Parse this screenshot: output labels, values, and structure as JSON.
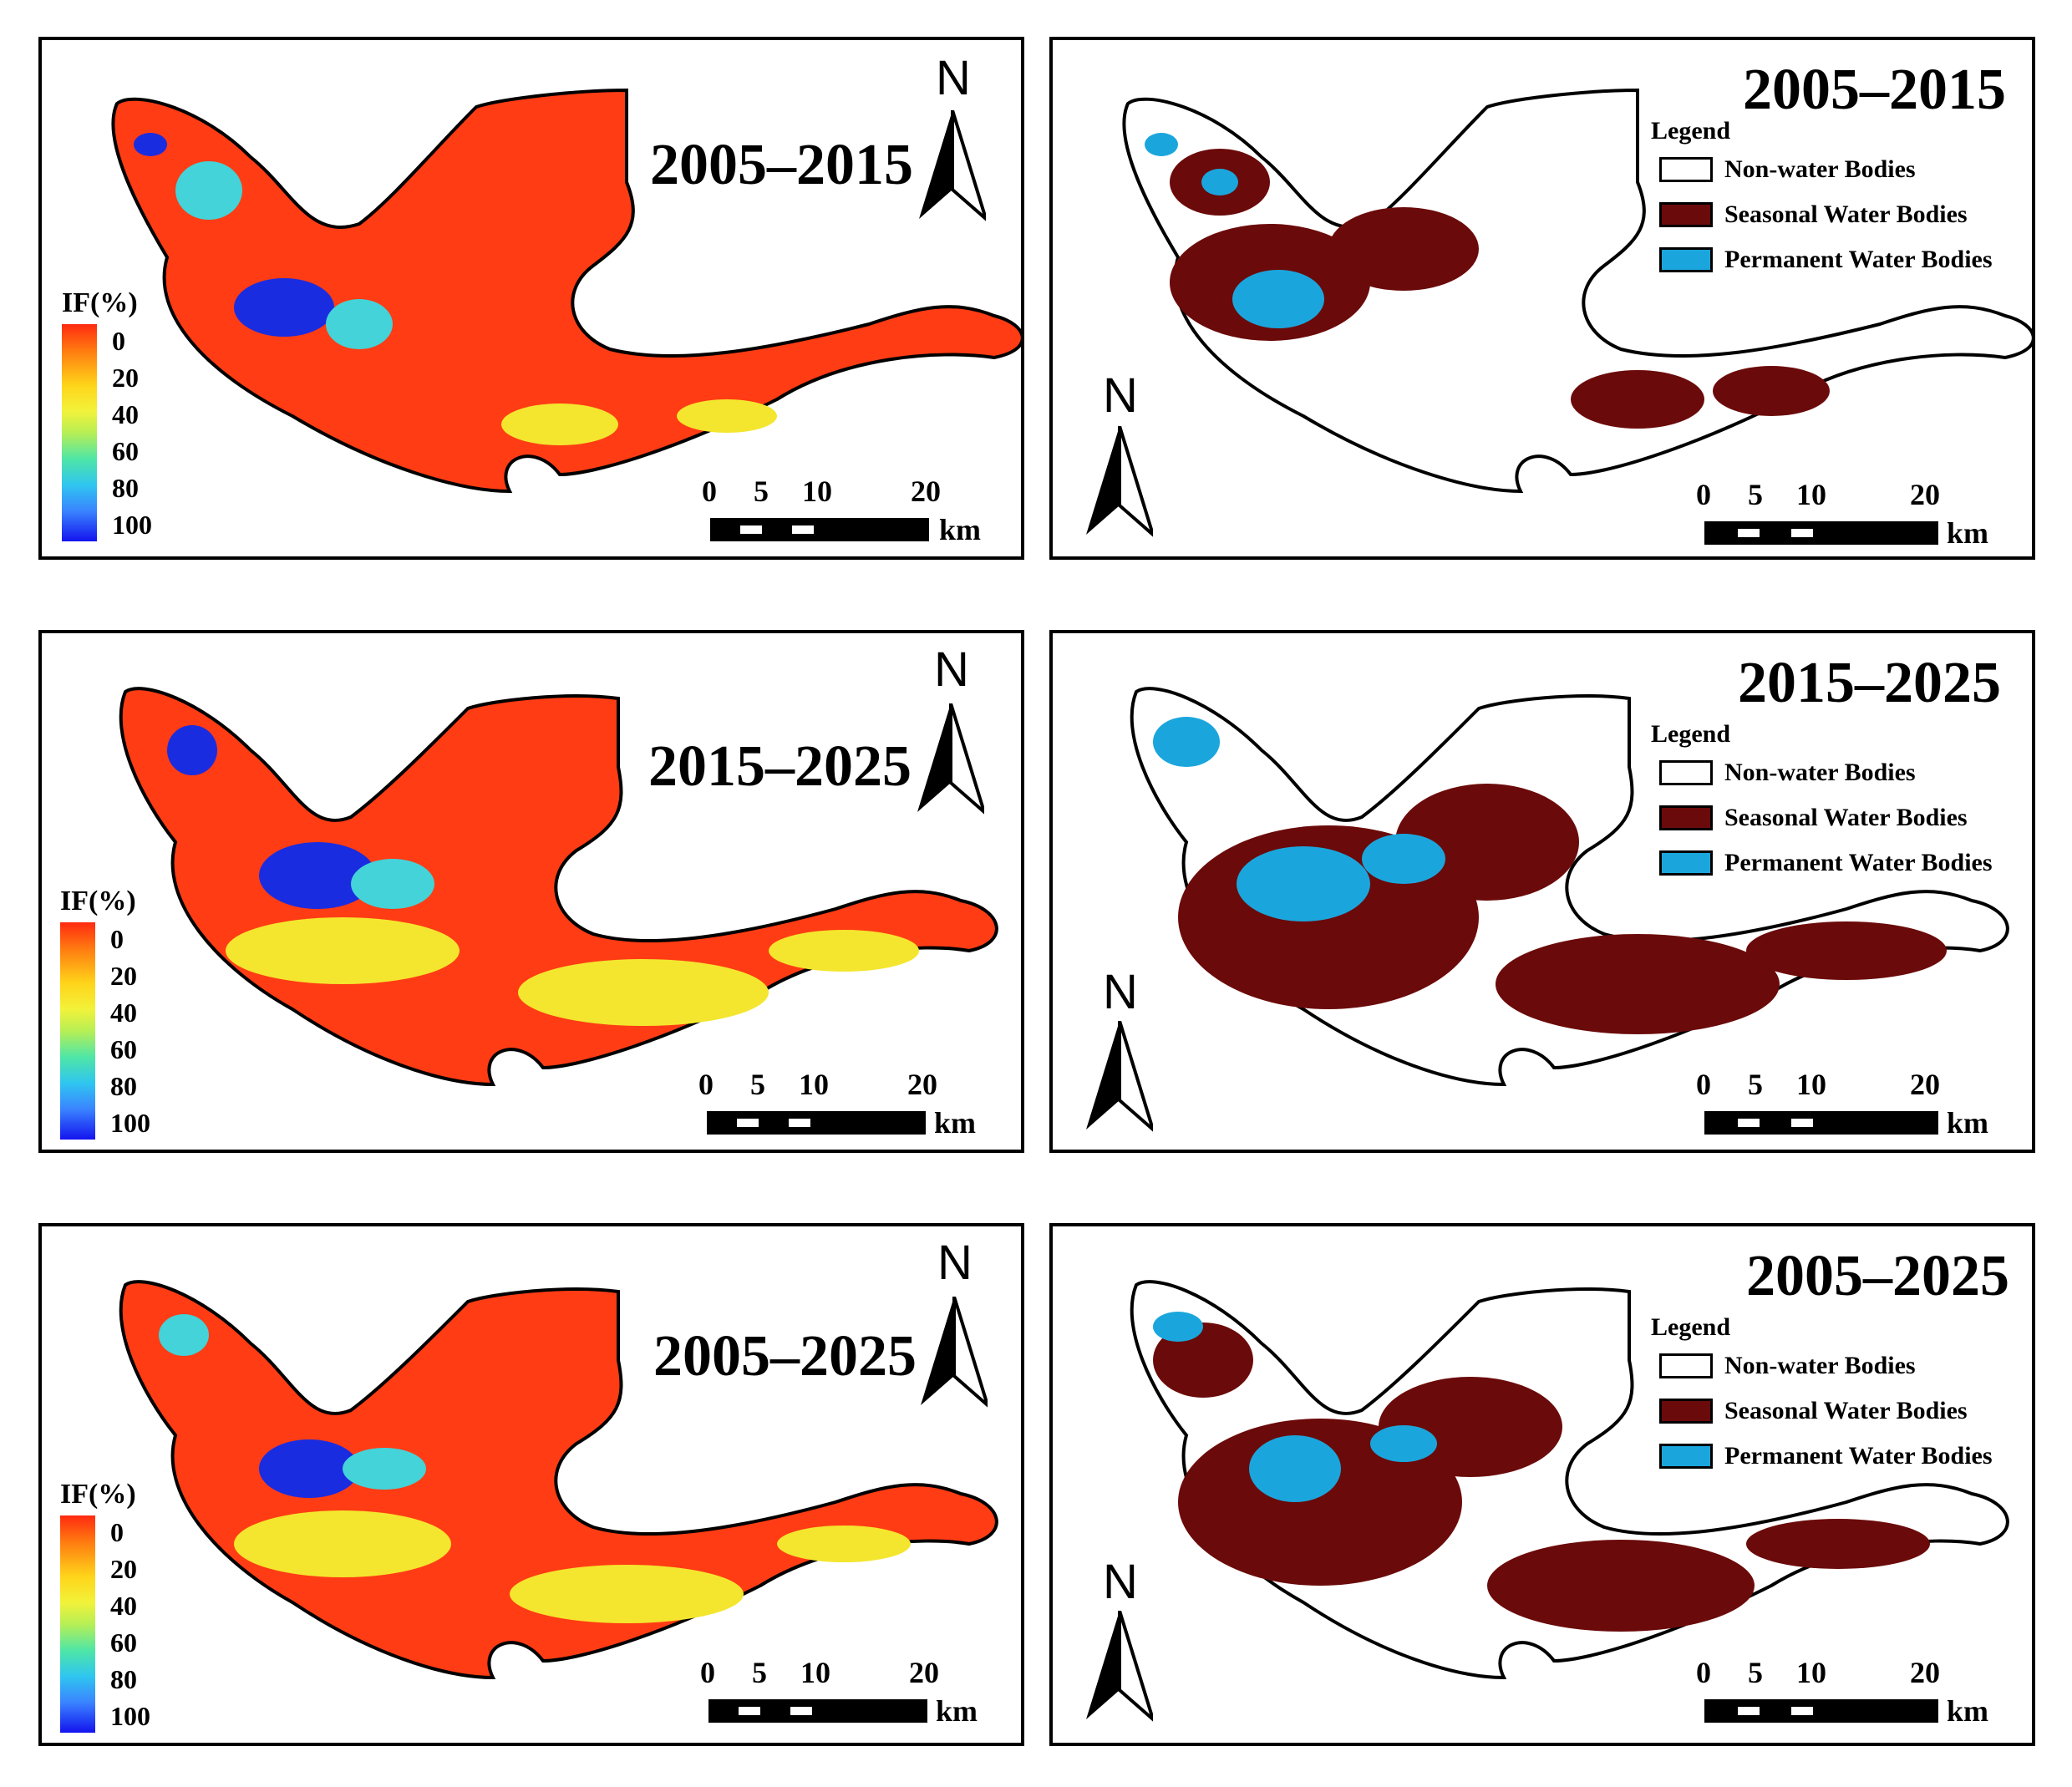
{
  "colorbar": {
    "title": "IF(%)",
    "ticks": [
      "0",
      "20",
      "40",
      "60",
      "80",
      "100"
    ]
  },
  "scalebar": {
    "labels": [
      "0",
      "5",
      "10",
      "20"
    ],
    "unit": "km"
  },
  "north": "N",
  "legend": {
    "title": "Legend",
    "items": [
      {
        "label": "Non-water Bodies",
        "color": "#ffffff"
      },
      {
        "label": "Seasonal Water Bodies",
        "color": "#6b0a0a"
      },
      {
        "label": "Permanent Water Bodies",
        "color": "#1aa6dc"
      }
    ]
  },
  "panels": [
    {
      "id": "if-2005-2015",
      "type": "if",
      "title": "2005–2015"
    },
    {
      "id": "wb-2005-2015",
      "type": "wb",
      "title": "2005–2015"
    },
    {
      "id": "if-2015-2025",
      "type": "if",
      "title": "2015–2025"
    },
    {
      "id": "wb-2015-2025",
      "type": "wb",
      "title": "2015–2025"
    },
    {
      "id": "if-2005-2025",
      "type": "if",
      "title": "2005–2025"
    },
    {
      "id": "wb-2005-2025",
      "type": "wb",
      "title": "2005–2025"
    }
  ],
  "colors": {
    "if_base": "#ff3c14",
    "if_yellow": "#f4e62e",
    "if_cyan": "#43d3d8",
    "if_blue": "#1a2ce0",
    "seasonal": "#6b0a0a",
    "permanent": "#1aa6dc"
  }
}
